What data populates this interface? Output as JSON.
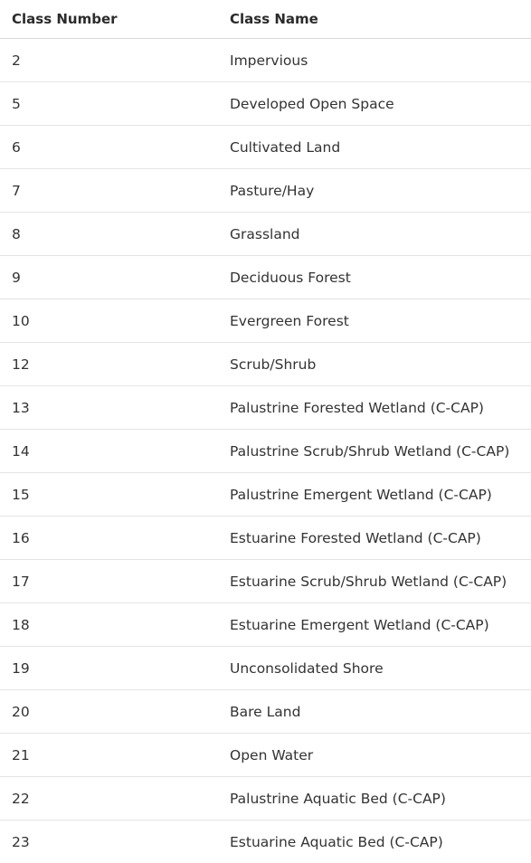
{
  "table": {
    "headers": [
      "Class Number",
      "Class Name"
    ],
    "rows": [
      [
        "2",
        "Impervious"
      ],
      [
        "5",
        "Developed Open Space"
      ],
      [
        "6",
        "Cultivated Land"
      ],
      [
        "7",
        "Pasture/Hay"
      ],
      [
        "8",
        "Grassland"
      ],
      [
        "9",
        "Deciduous Forest"
      ],
      [
        "10",
        "Evergreen Forest"
      ],
      [
        "12",
        "Scrub/Shrub"
      ],
      [
        "13",
        "Palustrine Forested Wetland (C-CAP)"
      ],
      [
        "14",
        "Palustrine Scrub/Shrub Wetland (C-CAP)"
      ],
      [
        "15",
        "Palustrine Emergent Wetland (C-CAP)"
      ],
      [
        "16",
        "Estuarine Forested Wetland (C-CAP)"
      ],
      [
        "17",
        "Estuarine Scrub/Shrub Wetland (C-CAP)"
      ],
      [
        "18",
        "Estuarine Emergent Wetland (C-CAP)"
      ],
      [
        "19",
        "Unconsolidated Shore"
      ],
      [
        "20",
        "Bare Land"
      ],
      [
        "21",
        "Open Water"
      ],
      [
        "22",
        "Palustrine Aquatic Bed (C-CAP)"
      ],
      [
        "23",
        "Estuarine Aquatic Bed (C-CAP)"
      ]
    ]
  }
}
